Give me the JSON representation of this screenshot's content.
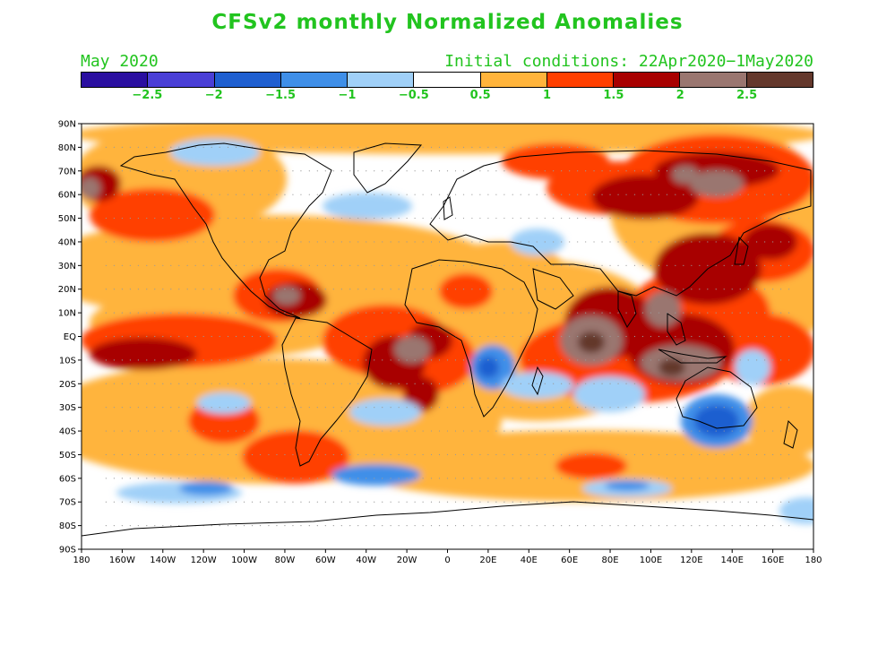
{
  "title": "CFSv2 monthly Normalized Anomalies",
  "month": "May 2020",
  "initial_conditions": "Initial conditions: 22Apr2020−1May2020",
  "colorbar": {
    "colors": [
      "#2a0fa0",
      "#4a3fd6",
      "#1f5fd0",
      "#3f8fe8",
      "#a0d0f8",
      "#ffffff",
      "#ffb43c",
      "#ff3f00",
      "#a80000",
      "#9a7670",
      "#64382c"
    ],
    "labels": [
      "−2.5",
      "−2",
      "−1.5",
      "−1",
      "−0.5",
      "0.5",
      "1",
      "1.5",
      "2",
      "2.5"
    ]
  },
  "map": {
    "lon_ticks": [
      "180",
      "160W",
      "140W",
      "120W",
      "100W",
      "80W",
      "60W",
      "40W",
      "20W",
      "0",
      "20E",
      "40E",
      "60E",
      "80E",
      "100E",
      "120E",
      "140E",
      "160E",
      "180"
    ],
    "lat_ticks": [
      "90N",
      "80N",
      "70N",
      "60N",
      "50N",
      "40N",
      "30N",
      "20N",
      "10N",
      "EQ",
      "10S",
      "20S",
      "30S",
      "40S",
      "50S",
      "60S",
      "70S",
      "80S",
      "90S"
    ]
  }
}
